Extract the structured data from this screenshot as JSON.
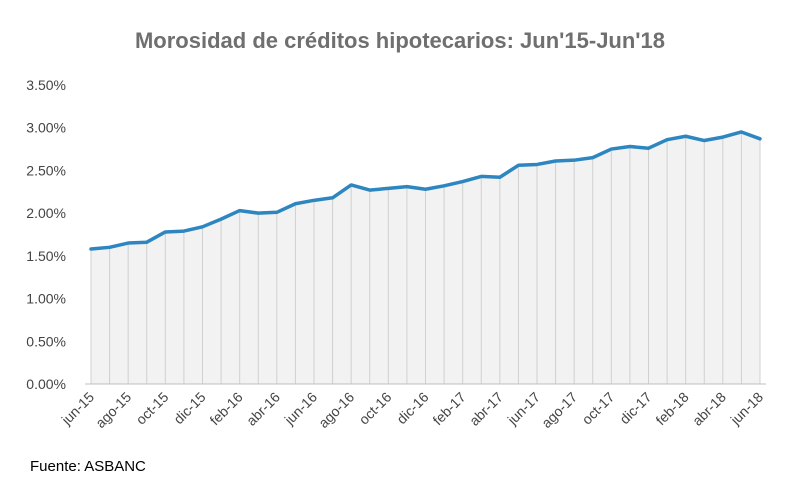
{
  "chart_data": {
    "type": "line",
    "title": "Morosidad de créditos hipotecarios: Jun'15-Jun'18",
    "xlabel": "",
    "ylabel": "",
    "ylim": [
      0,
      3.5
    ],
    "y_ticks": [
      "0.00%",
      "0.50%",
      "1.00%",
      "1.50%",
      "2.00%",
      "2.50%",
      "3.00%",
      "3.50%"
    ],
    "y_tick_values": [
      0,
      0.5,
      1.0,
      1.5,
      2.0,
      2.5,
      3.0,
      3.5
    ],
    "x_tick_labels": [
      "jun-15",
      "ago-15",
      "oct-15",
      "dic-15",
      "feb-16",
      "abr-16",
      "jun-16",
      "ago-16",
      "oct-16",
      "dic-16",
      "feb-17",
      "abr-17",
      "jun-17",
      "ago-17",
      "oct-17",
      "dic-17",
      "feb-18",
      "abr-18",
      "jun-18"
    ],
    "x": [
      "jun-15",
      "jul-15",
      "ago-15",
      "sep-15",
      "oct-15",
      "nov-15",
      "dic-15",
      "ene-16",
      "feb-16",
      "mar-16",
      "abr-16",
      "may-16",
      "jun-16",
      "jul-16",
      "ago-16",
      "sep-16",
      "oct-16",
      "nov-16",
      "dic-16",
      "ene-17",
      "feb-17",
      "mar-17",
      "abr-17",
      "may-17",
      "jun-17",
      "jul-17",
      "ago-17",
      "sep-17",
      "oct-17",
      "nov-17",
      "dic-17",
      "ene-18",
      "feb-18",
      "mar-18",
      "abr-18",
      "may-18",
      "jun-18"
    ],
    "series": [
      {
        "values": [
          1.58,
          1.6,
          1.65,
          1.66,
          1.78,
          1.79,
          1.84,
          1.93,
          2.03,
          2.0,
          2.01,
          2.11,
          2.15,
          2.18,
          2.33,
          2.27,
          2.29,
          2.31,
          2.28,
          2.32,
          2.37,
          2.43,
          2.42,
          2.56,
          2.57,
          2.61,
          2.62,
          2.65,
          2.75,
          2.78,
          2.76,
          2.86,
          2.9,
          2.85,
          2.89,
          2.95,
          2.87
        ],
        "color": "#2e86c1"
      }
    ],
    "grid": false,
    "legend": "none"
  },
  "source_text": "Fuente: ASBANC",
  "colors": {
    "line": "#2e86c1",
    "area_fill": "#f2f2f2",
    "drop_lines": "#d0d0d0",
    "axis": "#bfbfbf"
  }
}
